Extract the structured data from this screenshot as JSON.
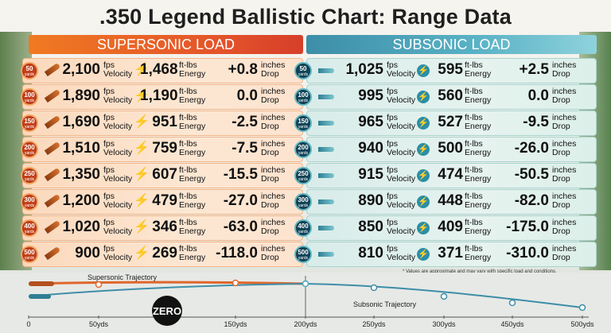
{
  "title": ".350 Legend Ballistic Chart: Range Data",
  "headers": {
    "supersonic": "SUPERSONIC LOAD",
    "subsonic": "SUBSONIC LOAD"
  },
  "units": {
    "velocity_unit": "fps",
    "velocity_label": "Velocity",
    "energy_unit": "ft-lbs",
    "energy_label": "Energy",
    "drop_unit": "inches",
    "drop_label": "Drop",
    "yards_label": "yards"
  },
  "colors": {
    "supersonic": "#e4532a",
    "subsonic": "#3d8ea8"
  },
  "chart_data": {
    "type": "table",
    "title": ".350 Legend Ballistic Chart: Range Data",
    "columns": [
      "Range (yards)",
      "Supersonic Velocity (fps)",
      "Supersonic Energy (ft-lbs)",
      "Supersonic Drop (inches)",
      "Subsonic Velocity (fps)",
      "Subsonic Energy (ft-lbs)",
      "Subsonic Drop (inches)"
    ],
    "rows": [
      {
        "range": "50",
        "sup": {
          "velocity": "2,100",
          "energy": "1,468",
          "drop": "+0.8"
        },
        "sub": {
          "velocity": "1,025",
          "energy": "595",
          "drop": "+2.5"
        }
      },
      {
        "range": "100",
        "sup": {
          "velocity": "1,890",
          "energy": "1,190",
          "drop": "0.0"
        },
        "sub": {
          "velocity": "995",
          "energy": "560",
          "drop": "0.0"
        }
      },
      {
        "range": "150",
        "sup": {
          "velocity": "1,690",
          "energy": "951",
          "drop": "-2.5"
        },
        "sub": {
          "velocity": "965",
          "energy": "527",
          "drop": "-9.5"
        }
      },
      {
        "range": "200",
        "sup": {
          "velocity": "1,510",
          "energy": "759",
          "drop": "-7.5"
        },
        "sub": {
          "velocity": "940",
          "energy": "500",
          "drop": "-26.0"
        }
      },
      {
        "range": "250",
        "sup": {
          "velocity": "1,350",
          "energy": "607",
          "drop": "-15.5"
        },
        "sub": {
          "velocity": "915",
          "energy": "474",
          "drop": "-50.5"
        }
      },
      {
        "range": "300",
        "sup": {
          "velocity": "1,200",
          "energy": "479",
          "drop": "-27.0"
        },
        "sub": {
          "velocity": "890",
          "energy": "448",
          "drop": "-82.0"
        }
      },
      {
        "range": "400",
        "sup": {
          "velocity": "1,020",
          "energy": "346",
          "drop": "-63.0"
        },
        "sub": {
          "velocity": "850",
          "energy": "409",
          "drop": "-175.0"
        }
      },
      {
        "range": "500",
        "sup": {
          "velocity": "900",
          "energy": "269",
          "drop": "-118.0"
        },
        "sub": {
          "velocity": "810",
          "energy": "371",
          "drop": "-310.0"
        }
      }
    ],
    "trajectory": {
      "type": "line",
      "x_ticks": [
        "0",
        "50yds",
        "150yds",
        "200yds",
        "250yds",
        "300yds",
        "450yds",
        "500yds"
      ],
      "zero_label": "ZERO",
      "series": [
        {
          "name": "Supersonic Trajectory"
        },
        {
          "name": "Subsonic Trajectory"
        }
      ]
    }
  },
  "note": "* Values are approximate and may vary with specific load and conditions."
}
